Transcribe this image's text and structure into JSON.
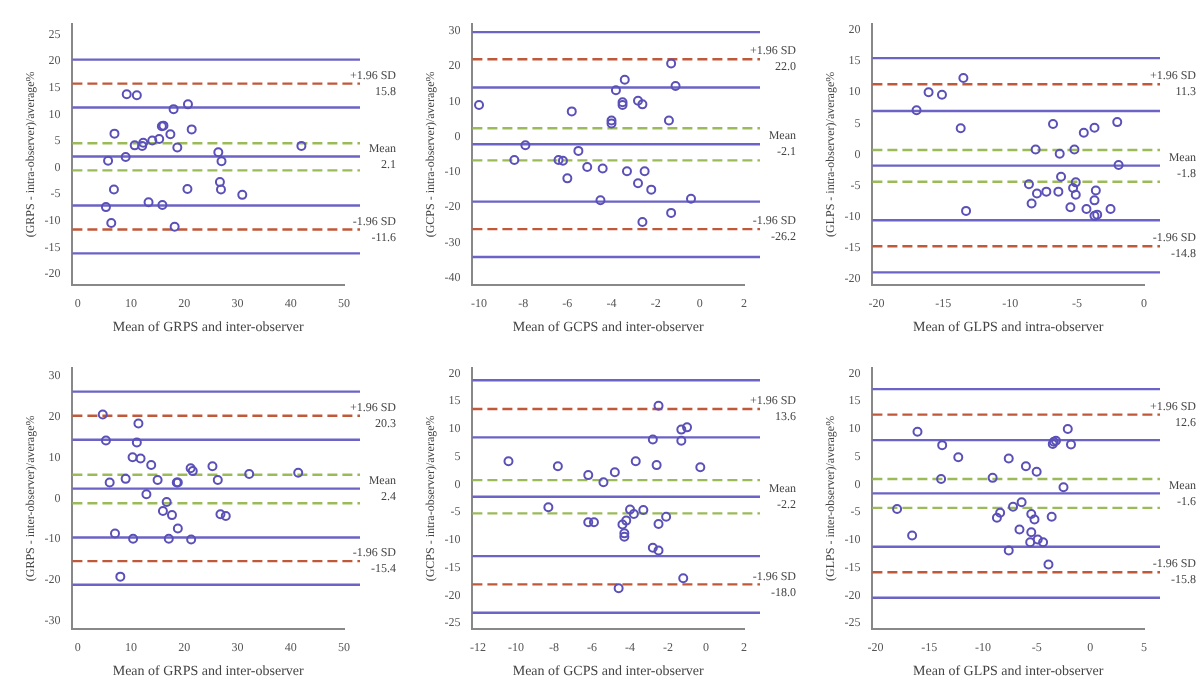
{
  "chart_data": [
    {
      "type": "scatter",
      "xlabel": "Mean of GRPS and inter-observer",
      "ylabel": "(GRPS - intra-observer)/average%",
      "xlim": [
        -1,
        50
      ],
      "xticks": [
        0,
        10,
        20,
        30,
        40,
        50
      ],
      "ylim": [
        -22,
        27
      ],
      "yticks": [
        -20,
        -15,
        -10,
        -5,
        0,
        5,
        10,
        15,
        20,
        25
      ],
      "grid": false,
      "legend": false,
      "marker": "circle",
      "series": [
        {
          "color": "#5a50b8",
          "x": [
            9.2,
            11.1,
            5.7,
            6.9,
            9.0,
            6.8,
            5.3,
            6.3,
            10.7,
            12.1,
            12.3,
            14.0,
            15.3,
            15.8,
            16.1,
            17.4,
            18.0,
            18.7,
            20.7,
            21.4,
            13.3,
            15.9,
            20.6,
            18.2,
            26.4,
            27.0,
            26.7,
            26.9,
            30.9,
            42.0
          ],
          "values": [
            13.8,
            13.6,
            1.3,
            6.4,
            2.0,
            -4.1,
            -7.4,
            -10.4,
            4.2,
            4.1,
            4.7,
            5.1,
            5.4,
            7.8,
            7.9,
            6.3,
            11.0,
            3.8,
            11.9,
            7.2,
            -6.5,
            -7.0,
            -4.0,
            -11.1,
            2.9,
            1.2,
            -2.7,
            -4.1,
            -5.1,
            4.1
          ]
        }
      ],
      "ref_lines": [
        {
          "axis": "y",
          "value": 20.3,
          "color": "#6b63c6",
          "line_style": "solid"
        },
        {
          "axis": "y",
          "value": 15.8,
          "label": "+1.96 SD",
          "color": "#c0583a",
          "line_style": "dashed"
        },
        {
          "axis": "y",
          "value": 11.3,
          "color": "#6b63c6",
          "line_style": "solid"
        },
        {
          "axis": "y",
          "value": 4.6,
          "color": "#9bbb59",
          "line_style": "dashed"
        },
        {
          "axis": "y",
          "value": 2.1,
          "label": "Mean",
          "color": "#6b63c6",
          "line_style": "solid"
        },
        {
          "axis": "y",
          "value": -0.5,
          "color": "#9bbb59",
          "line_style": "dashed"
        },
        {
          "axis": "y",
          "value": -7.1,
          "color": "#6b63c6",
          "line_style": "solid"
        },
        {
          "axis": "y",
          "value": -11.6,
          "label": "-1.96 SD",
          "color": "#c0583a",
          "line_style": "dashed"
        },
        {
          "axis": "y",
          "value": -16.1,
          "color": "#6b63c6",
          "line_style": "solid"
        }
      ],
      "annotations": [
        "15.8",
        "2.1",
        "-11.6"
      ]
    },
    {
      "type": "scatter",
      "xlabel": "Mean of GCPS and inter-observer",
      "ylabel": "(GCPS - intra-observer)/average%",
      "xlim": [
        -10.3,
        2
      ],
      "xticks": [
        -10,
        -8,
        -6,
        -4,
        -2,
        0,
        2
      ],
      "ylim": [
        -42,
        32
      ],
      "yticks": [
        -40,
        -30,
        -20,
        -10,
        0,
        10,
        20,
        30
      ],
      "grid": false,
      "legend": false,
      "marker": "circle",
      "series": [
        {
          "color": "#5a50b8",
          "x": [
            -10.0,
            -8.4,
            -7.9,
            -6.4,
            -6.2,
            -6.0,
            -5.8,
            -5.5,
            -5.1,
            -4.4,
            -4.5,
            -4.0,
            -4.0,
            -3.8,
            -3.5,
            -3.5,
            -3.4,
            -3.3,
            -2.8,
            -2.8,
            -2.6,
            -2.6,
            -2.5,
            -2.2,
            -1.4,
            -1.3,
            -1.1,
            -1.3,
            -0.4
          ],
          "values": [
            9.0,
            -6.6,
            -2.4,
            -6.6,
            -6.8,
            -11.8,
            7.2,
            -4.0,
            -8.6,
            -9.0,
            -18.0,
            3.8,
            4.6,
            13.2,
            9.8,
            9.0,
            16.2,
            -9.8,
            10.2,
            -13.2,
            9.2,
            -24.2,
            -9.8,
            -15.0,
            4.6,
            20.8,
            14.4,
            -21.6,
            -17.6
          ]
        }
      ],
      "ref_lines": [
        {
          "axis": "y",
          "value": 29.7,
          "color": "#6b63c6",
          "line_style": "solid"
        },
        {
          "axis": "y",
          "value": 22.0,
          "label": "+1.96 SD",
          "color": "#c0583a",
          "line_style": "dashed"
        },
        {
          "axis": "y",
          "value": 14.0,
          "color": "#6b63c6",
          "line_style": "solid"
        },
        {
          "axis": "y",
          "value": 2.4,
          "color": "#9bbb59",
          "line_style": "dashed"
        },
        {
          "axis": "y",
          "value": -2.1,
          "label": "Mean",
          "color": "#6b63c6",
          "line_style": "solid"
        },
        {
          "axis": "y",
          "value": -6.7,
          "color": "#9bbb59",
          "line_style": "dashed"
        },
        {
          "axis": "y",
          "value": -18.4,
          "color": "#6b63c6",
          "line_style": "solid"
        },
        {
          "axis": "y",
          "value": -26.2,
          "label": "-1.96 SD",
          "color": "#c0583a",
          "line_style": "dashed"
        },
        {
          "axis": "y",
          "value": -34.1,
          "color": "#6b63c6",
          "line_style": "solid"
        }
      ],
      "annotations": [
        "22.0",
        "-2.1",
        "-26.2"
      ]
    },
    {
      "type": "scatter",
      "xlabel": "Mean of GLPS and intra-observer",
      "ylabel": "(GLPS - intra-observer)/average%",
      "xlim": [
        -20.3,
        0
      ],
      "xticks": [
        -20,
        -15,
        -10,
        -5,
        0
      ],
      "ylim": [
        -21,
        21
      ],
      "yticks": [
        -20,
        -15,
        -10,
        -5,
        0,
        5,
        10,
        15,
        20
      ],
      "grid": false,
      "legend": false,
      "marker": "circle",
      "series": [
        {
          "color": "#5a50b8",
          "x": [
            -17.0,
            -16.1,
            -15.1,
            -13.5,
            -13.7,
            -13.3,
            -8.6,
            -8.4,
            -8.1,
            -8.0,
            -7.3,
            -6.8,
            -6.4,
            -6.3,
            -6.2,
            -5.5,
            -5.3,
            -5.2,
            -5.1,
            -5.1,
            -4.5,
            -4.3,
            -3.7,
            -3.7,
            -3.6,
            -3.7,
            -3.5,
            -2.5,
            -2.0,
            -1.9
          ],
          "values": [
            7.1,
            10.0,
            9.6,
            12.3,
            4.2,
            -9.1,
            -4.8,
            -7.9,
            0.8,
            -6.3,
            -6.0,
            4.9,
            -6.0,
            0.1,
            -3.6,
            -8.5,
            -5.4,
            0.8,
            -4.5,
            -6.5,
            3.5,
            -8.8,
            4.3,
            -7.4,
            -5.8,
            -9.9,
            -9.7,
            -8.8,
            5.2,
            -1.7
          ]
        }
      ],
      "ref_lines": [
        {
          "axis": "y",
          "value": 15.5,
          "color": "#6b63c6",
          "line_style": "solid"
        },
        {
          "axis": "y",
          "value": 11.3,
          "label": "+1.96 SD",
          "color": "#c0583a",
          "line_style": "dashed"
        },
        {
          "axis": "y",
          "value": 7.0,
          "color": "#6b63c6",
          "line_style": "solid"
        },
        {
          "axis": "y",
          "value": 0.7,
          "color": "#9bbb59",
          "line_style": "dashed"
        },
        {
          "axis": "y",
          "value": -1.8,
          "label": "Mean",
          "color": "#6b63c6",
          "line_style": "solid"
        },
        {
          "axis": "y",
          "value": -4.4,
          "color": "#9bbb59",
          "line_style": "dashed"
        },
        {
          "axis": "y",
          "value": -10.6,
          "color": "#6b63c6",
          "line_style": "solid"
        },
        {
          "axis": "y",
          "value": -14.8,
          "label": "-1.96 SD",
          "color": "#c0583a",
          "line_style": "dashed"
        },
        {
          "axis": "y",
          "value": -19.0,
          "color": "#6b63c6",
          "line_style": "solid"
        }
      ],
      "annotations": [
        "11.3",
        "-1.8",
        "-14.8"
      ]
    },
    {
      "type": "scatter",
      "xlabel": "Mean of GRPS and inter-observer",
      "ylabel": "(GRPS - inter-observer)/average%",
      "xlim": [
        -1,
        50
      ],
      "xticks": [
        0,
        10,
        20,
        30,
        40,
        50
      ],
      "ylim": [
        -32,
        32
      ],
      "yticks": [
        -30,
        -20,
        -10,
        0,
        10,
        20,
        30
      ],
      "grid": false,
      "legend": false,
      "marker": "circle",
      "series": [
        {
          "color": "#5a50b8",
          "x": [
            4.7,
            5.3,
            6.0,
            7.0,
            8.0,
            9.0,
            10.3,
            10.4,
            11.1,
            11.4,
            11.8,
            13.8,
            12.9,
            15.0,
            16.0,
            16.7,
            17.1,
            17.7,
            18.6,
            18.8,
            18.8,
            21.2,
            21.6,
            21.3,
            25.3,
            26.3,
            26.8,
            27.8,
            32.2,
            41.4
          ],
          "values": [
            20.6,
            14.2,
            3.9,
            -8.6,
            -19.2,
            4.8,
            10.1,
            -9.9,
            13.7,
            18.4,
            9.8,
            8.2,
            1.0,
            4.5,
            -3.1,
            -0.9,
            -9.9,
            -4.1,
            3.9,
            3.9,
            -7.4,
            7.4,
            6.7,
            -10.1,
            7.9,
            4.5,
            -3.9,
            -4.3,
            6.0,
            6.3
          ]
        }
      ],
      "ref_lines": [
        {
          "axis": "y",
          "value": 26.2,
          "color": "#6b63c6",
          "line_style": "solid"
        },
        {
          "axis": "y",
          "value": 20.3,
          "label": "+1.96 SD",
          "color": "#c0583a",
          "line_style": "dashed"
        },
        {
          "axis": "y",
          "value": 14.4,
          "color": "#6b63c6",
          "line_style": "solid"
        },
        {
          "axis": "y",
          "value": 5.8,
          "color": "#9bbb59",
          "line_style": "dashed"
        },
        {
          "axis": "y",
          "value": 2.4,
          "label": "Mean",
          "color": "#6b63c6",
          "line_style": "solid"
        },
        {
          "axis": "y",
          "value": -1.2,
          "color": "#9bbb59",
          "line_style": "dashed"
        },
        {
          "axis": "y",
          "value": -9.6,
          "color": "#6b63c6",
          "line_style": "solid"
        },
        {
          "axis": "y",
          "value": -15.4,
          "label": "-1.96 SD",
          "color": "#c0583a",
          "line_style": "dashed"
        },
        {
          "axis": "y",
          "value": -21.2,
          "color": "#6b63c6",
          "line_style": "solid"
        }
      ],
      "annotations": [
        "20.3",
        "2.4",
        "-15.4"
      ]
    },
    {
      "type": "scatter",
      "xlabel": "Mean of GCPS and inter-observer",
      "ylabel": "(GCPS - intra-observer)/average%",
      "xlim": [
        -12.3,
        2
      ],
      "xticks": [
        -12,
        -10,
        -8,
        -6,
        -4,
        -2,
        0,
        2
      ],
      "ylim": [
        -26,
        21
      ],
      "yticks": [
        -25,
        -20,
        -15,
        -10,
        -5,
        0,
        5,
        10,
        15,
        20
      ],
      "grid": false,
      "legend": false,
      "marker": "circle",
      "series": [
        {
          "color": "#5a50b8",
          "x": [
            -10.4,
            -8.3,
            -7.8,
            -6.2,
            -6.2,
            -5.9,
            -5.4,
            -4.8,
            -4.6,
            -4.4,
            -4.3,
            -4.3,
            -4.2,
            -4.0,
            -3.8,
            -3.7,
            -3.3,
            -2.8,
            -2.8,
            -2.6,
            -2.5,
            -2.5,
            -2.5,
            -2.1,
            -1.3,
            -1.3,
            -1.0,
            -1.2,
            -0.3
          ],
          "values": [
            4.2,
            -4.1,
            3.3,
            1.7,
            -6.8,
            -6.8,
            0.4,
            2.2,
            -18.7,
            -7.2,
            -8.8,
            -9.4,
            -6.5,
            -4.5,
            -5.3,
            4.2,
            -4.6,
            8.1,
            -11.4,
            3.5,
            14.2,
            -7.1,
            -11.9,
            -5.8,
            7.9,
            9.9,
            10.3,
            -16.9,
            3.1
          ]
        }
      ],
      "ref_lines": [
        {
          "axis": "y",
          "value": 18.8,
          "color": "#6b63c6",
          "line_style": "solid"
        },
        {
          "axis": "y",
          "value": 13.6,
          "label": "+1.96 SD",
          "color": "#c0583a",
          "line_style": "dashed"
        },
        {
          "axis": "y",
          "value": 8.5,
          "color": "#6b63c6",
          "line_style": "solid"
        },
        {
          "axis": "y",
          "value": 0.8,
          "color": "#9bbb59",
          "line_style": "dashed"
        },
        {
          "axis": "y",
          "value": -2.2,
          "label": "Mean",
          "color": "#6b63c6",
          "line_style": "solid"
        },
        {
          "axis": "y",
          "value": -5.2,
          "color": "#9bbb59",
          "line_style": "dashed"
        },
        {
          "axis": "y",
          "value": -12.9,
          "color": "#6b63c6",
          "line_style": "solid"
        },
        {
          "axis": "y",
          "value": -18.0,
          "label": "-1.96 SD",
          "color": "#c0583a",
          "line_style": "dashed"
        },
        {
          "axis": "y",
          "value": -23.1,
          "color": "#6b63c6",
          "line_style": "solid"
        }
      ],
      "annotations": [
        "13.6",
        "-2.2",
        "-18.0"
      ]
    },
    {
      "type": "scatter",
      "xlabel": "Mean of GLPS and inter-observer",
      "ylabel": "(GLPS - inter-observer)/average%",
      "xlim": [
        -20.3,
        5
      ],
      "xticks": [
        -20,
        -15,
        -10,
        -5,
        0,
        5
      ],
      "ylim": [
        -26,
        21
      ],
      "yticks": [
        -25,
        -20,
        -15,
        -10,
        -5,
        0,
        5,
        10,
        15,
        20
      ],
      "grid": false,
      "legend": false,
      "marker": "circle",
      "series": [
        {
          "color": "#5a50b8",
          "x": [
            -18.0,
            -16.6,
            -16.1,
            -13.8,
            -13.9,
            -12.3,
            -9.1,
            -8.7,
            -8.4,
            -7.6,
            -7.6,
            -7.2,
            -6.6,
            -6.4,
            -6.0,
            -5.0,
            -5.5,
            -5.2,
            -5.5,
            -5.6,
            -4.9,
            -4.4,
            -3.9,
            -3.6,
            -3.5,
            -3.4,
            -3.2,
            -2.5,
            -2.1,
            -1.8
          ],
          "values": [
            -4.4,
            -9.2,
            9.5,
            7.1,
            1.0,
            4.9,
            1.2,
            -6.0,
            -5.1,
            4.7,
            -11.9,
            -4.0,
            -8.1,
            -3.2,
            3.3,
            2.3,
            -5.3,
            -6.3,
            -8.6,
            -10.4,
            -9.9,
            -10.4,
            -14.4,
            -5.8,
            7.3,
            7.7,
            7.9,
            -0.5,
            10.0,
            7.2
          ]
        }
      ],
      "ref_lines": [
        {
          "axis": "y",
          "value": 17.2,
          "color": "#6b63c6",
          "line_style": "solid"
        },
        {
          "axis": "y",
          "value": 12.6,
          "label": "+1.96 SD",
          "color": "#c0583a",
          "line_style": "dashed"
        },
        {
          "axis": "y",
          "value": 8.0,
          "color": "#6b63c6",
          "line_style": "solid"
        },
        {
          "axis": "y",
          "value": 1.0,
          "color": "#9bbb59",
          "line_style": "dashed"
        },
        {
          "axis": "y",
          "value": -1.6,
          "label": "Mean",
          "color": "#6b63c6",
          "line_style": "solid"
        },
        {
          "axis": "y",
          "value": -4.2,
          "color": "#9bbb59",
          "line_style": "dashed"
        },
        {
          "axis": "y",
          "value": -11.2,
          "color": "#6b63c6",
          "line_style": "solid"
        },
        {
          "axis": "y",
          "value": -15.8,
          "label": "-1.96 SD",
          "color": "#c0583a",
          "line_style": "dashed"
        },
        {
          "axis": "y",
          "value": -20.4,
          "color": "#6b63c6",
          "line_style": "solid"
        }
      ],
      "annotations": [
        "12.6",
        "-1.6",
        "-15.8"
      ]
    }
  ]
}
